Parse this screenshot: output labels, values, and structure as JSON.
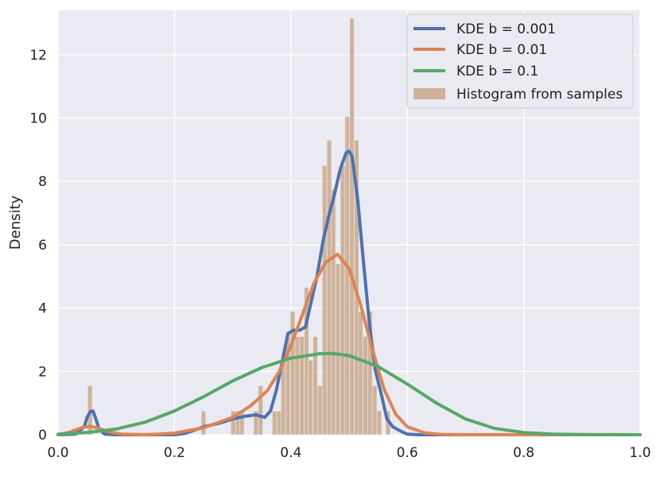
{
  "chart_data": {
    "type": "line",
    "title": "",
    "xlabel": "",
    "ylabel": "Density",
    "xlim": [
      0.0,
      1.0
    ],
    "ylim": [
      0,
      13.4
    ],
    "x_ticks": [
      "0.0",
      "0.2",
      "0.4",
      "0.6",
      "0.8",
      "1.0"
    ],
    "y_ticks": [
      "0",
      "2",
      "4",
      "6",
      "8",
      "10",
      "12"
    ],
    "grid": true,
    "legend_position": "top-right",
    "histogram": {
      "name": "Histogram from samples",
      "color": "#c9a98b",
      "bin_width": 0.0078,
      "bins": [
        {
          "x": 0.051,
          "y": 1.55
        },
        {
          "x": 0.246,
          "y": 0.75
        },
        {
          "x": 0.297,
          "y": 0.75
        },
        {
          "x": 0.305,
          "y": 0.75
        },
        {
          "x": 0.312,
          "y": 0.75
        },
        {
          "x": 0.336,
          "y": 0.75
        },
        {
          "x": 0.344,
          "y": 1.55
        },
        {
          "x": 0.368,
          "y": 0.75
        },
        {
          "x": 0.376,
          "y": 0.75
        },
        {
          "x": 0.383,
          "y": 2.35
        },
        {
          "x": 0.391,
          "y": 3.1
        },
        {
          "x": 0.399,
          "y": 3.9
        },
        {
          "x": 0.407,
          "y": 3.1
        },
        {
          "x": 0.415,
          "y": 3.1
        },
        {
          "x": 0.423,
          "y": 4.65
        },
        {
          "x": 0.43,
          "y": 2.35
        },
        {
          "x": 0.438,
          "y": 3.1
        },
        {
          "x": 0.446,
          "y": 1.55
        },
        {
          "x": 0.454,
          "y": 8.5
        },
        {
          "x": 0.462,
          "y": 9.3
        },
        {
          "x": 0.469,
          "y": 7.75
        },
        {
          "x": 0.477,
          "y": 5.4
        },
        {
          "x": 0.485,
          "y": 8.5
        },
        {
          "x": 0.493,
          "y": 10.05
        },
        {
          "x": 0.501,
          "y": 13.15
        },
        {
          "x": 0.509,
          "y": 9.3
        },
        {
          "x": 0.516,
          "y": 3.9
        },
        {
          "x": 0.524,
          "y": 3.1
        },
        {
          "x": 0.532,
          "y": 3.9
        },
        {
          "x": 0.54,
          "y": 1.55
        },
        {
          "x": 0.548,
          "y": 0.75
        },
        {
          "x": 0.563,
          "y": 0.75
        }
      ]
    },
    "series": [
      {
        "name": "KDE b = 0.001",
        "color": "#4c72b0",
        "x": [
          0.0,
          0.03,
          0.045,
          0.05,
          0.055,
          0.06,
          0.065,
          0.07,
          0.08,
          0.1,
          0.15,
          0.2,
          0.22,
          0.25,
          0.28,
          0.3,
          0.32,
          0.34,
          0.355,
          0.365,
          0.375,
          0.385,
          0.395,
          0.405,
          0.415,
          0.425,
          0.435,
          0.445,
          0.455,
          0.465,
          0.475,
          0.485,
          0.495,
          0.5,
          0.505,
          0.515,
          0.525,
          0.535,
          0.545,
          0.555,
          0.565,
          0.575,
          0.59,
          0.6,
          0.62,
          0.65,
          1.0
        ],
        "y": [
          0,
          0.02,
          0.25,
          0.55,
          0.72,
          0.75,
          0.5,
          0.2,
          0.02,
          0,
          0,
          0,
          0.05,
          0.25,
          0.38,
          0.5,
          0.58,
          0.63,
          0.55,
          0.75,
          1.4,
          2.3,
          3.2,
          3.3,
          3.3,
          3.4,
          4.2,
          5.0,
          6.1,
          6.9,
          7.6,
          8.4,
          8.9,
          8.95,
          8.8,
          7.4,
          5.4,
          3.5,
          2.05,
          1.3,
          0.5,
          0.25,
          0.1,
          0.02,
          0,
          0,
          0
        ]
      },
      {
        "name": "KDE b = 0.01",
        "color": "#dd8452",
        "x": [
          0.0,
          0.02,
          0.04,
          0.055,
          0.07,
          0.09,
          0.11,
          0.15,
          0.2,
          0.25,
          0.3,
          0.33,
          0.36,
          0.38,
          0.4,
          0.42,
          0.44,
          0.46,
          0.48,
          0.5,
          0.52,
          0.54,
          0.56,
          0.58,
          0.6,
          0.63,
          0.66,
          0.7,
          1.0
        ],
        "y": [
          0,
          0.08,
          0.22,
          0.27,
          0.2,
          0.08,
          0.02,
          0,
          0.05,
          0.22,
          0.55,
          0.9,
          1.4,
          2.0,
          2.8,
          3.8,
          4.8,
          5.45,
          5.7,
          5.25,
          4.1,
          2.7,
          1.45,
          0.65,
          0.25,
          0.06,
          0.01,
          0,
          0
        ]
      },
      {
        "name": "KDE b = 0.1",
        "color": "#55a868",
        "x": [
          0.0,
          0.05,
          0.1,
          0.15,
          0.2,
          0.25,
          0.3,
          0.35,
          0.4,
          0.45,
          0.47,
          0.5,
          0.55,
          0.6,
          0.65,
          0.7,
          0.75,
          0.8,
          0.85,
          0.9,
          1.0
        ],
        "y": [
          0.02,
          0.07,
          0.18,
          0.4,
          0.75,
          1.2,
          1.7,
          2.12,
          2.42,
          2.56,
          2.57,
          2.5,
          2.15,
          1.6,
          1.0,
          0.5,
          0.2,
          0.07,
          0.02,
          0.005,
          0
        ]
      }
    ]
  }
}
